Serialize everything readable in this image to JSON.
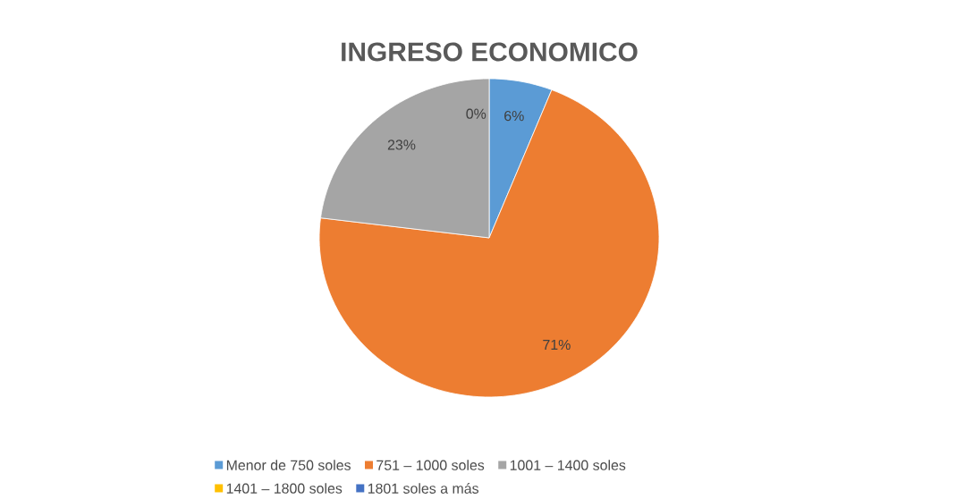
{
  "chart_data": {
    "type": "pie",
    "title": "INGRESO ECONOMICO",
    "categories": [
      "Menor de 750 soles",
      "751 – 1000 soles",
      "1001 – 1400 soles",
      "1401 – 1800 soles",
      "1801 soles a más"
    ],
    "values": [
      6,
      71,
      23,
      0,
      0
    ],
    "colors": [
      "#5b9bd5",
      "#ed7d31",
      "#a5a5a5",
      "#ffc000",
      "#4472c4"
    ],
    "value_labels": [
      "6%",
      "71%",
      "23%",
      "0%",
      null
    ],
    "legend": "bottom"
  }
}
